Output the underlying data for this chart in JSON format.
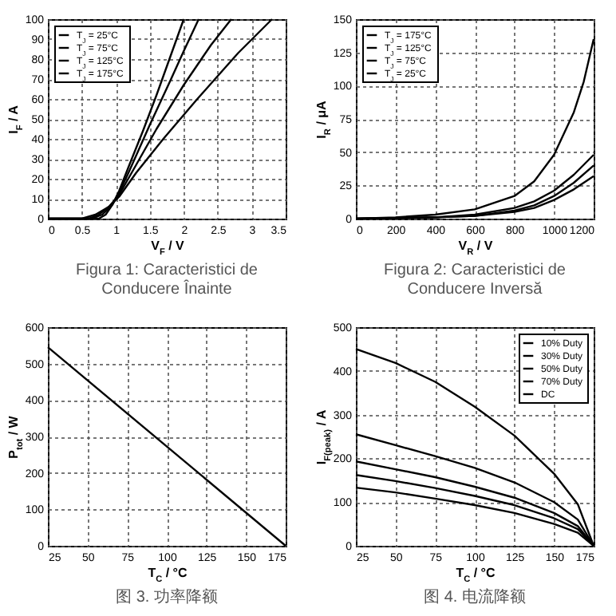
{
  "chart_data": [
    {
      "type": "line",
      "title": "Figura 1: Caracteristici de Conducere Înainte",
      "xlabel": "V$_{F}$ / V",
      "ylabel": "I$_{F}$ / A",
      "xlim": [
        0,
        3.5
      ],
      "xticks": [
        0,
        0.5,
        1,
        1.5,
        2,
        2.5,
        3,
        3.5
      ],
      "ylim": [
        0,
        100
      ],
      "yticks": [
        0,
        10,
        20,
        30,
        40,
        50,
        60,
        70,
        80,
        90,
        100
      ],
      "grid": true,
      "legend": "top left",
      "series": [
        {
          "name": "T$_{J}$ = 25°C",
          "color": "#000000",
          "x": [
            0,
            0.75,
            0.85,
            0.95,
            1.05,
            1.2,
            1.4,
            1.6,
            1.8,
            2.0
          ],
          "values": [
            0,
            0,
            2,
            7,
            14,
            27,
            44,
            62,
            81,
            100
          ]
        },
        {
          "name": "T$_{J}$ = 75°C",
          "color": "#000000",
          "x": [
            0,
            0.65,
            0.8,
            0.95,
            1.05,
            1.2,
            1.5,
            1.8,
            2.0,
            2.22
          ],
          "values": [
            0,
            0,
            2,
            7,
            13,
            24,
            47,
            69,
            84,
            100
          ]
        },
        {
          "name": "T$_{J}$ = 125°C",
          "color": "#000000",
          "x": [
            0,
            0.6,
            0.75,
            0.9,
            1.05,
            1.3,
            1.6,
            2.0,
            2.4,
            2.7
          ],
          "values": [
            0,
            0,
            2,
            6,
            12,
            27,
            45,
            67,
            87,
            100
          ]
        },
        {
          "name": "T$_{J}$ = 175°C",
          "color": "#000000",
          "x": [
            0,
            0.5,
            0.7,
            0.9,
            1.05,
            1.3,
            1.7,
            2.2,
            2.8,
            3.3
          ],
          "values": [
            0,
            0,
            2,
            6,
            11,
            23,
            40,
            60,
            83,
            100
          ]
        }
      ]
    },
    {
      "type": "line",
      "title": "Figura 2: Caracteristici de Conducere Inversă",
      "xlabel": "V$_{R}$ / V",
      "ylabel": "I$_{R}$ / μA",
      "xlim": [
        0,
        1200
      ],
      "xticks": [
        0,
        200,
        400,
        600,
        800,
        1000,
        1200
      ],
      "ylim": [
        0,
        150
      ],
      "yticks": [
        0,
        25,
        50,
        75,
        100,
        125,
        150
      ],
      "grid": true,
      "legend": "top left",
      "series": [
        {
          "name": "T$_{J}$ = 175°C",
          "color": "#000000",
          "x": [
            0,
            200,
            400,
            600,
            800,
            900,
            1000,
            1100,
            1150,
            1200
          ],
          "values": [
            0,
            1,
            3,
            7,
            17,
            28,
            48,
            80,
            103,
            135
          ]
        },
        {
          "name": "T$_{J}$ = 125°C",
          "color": "#000000",
          "x": [
            0,
            400,
            600,
            800,
            900,
            1000,
            1100,
            1200
          ],
          "values": [
            0,
            1,
            3,
            8,
            13,
            21,
            33,
            48
          ]
        },
        {
          "name": "T$_{J}$ = 75°C",
          "color": "#000000",
          "x": [
            0,
            400,
            600,
            800,
            900,
            1000,
            1100,
            1200
          ],
          "values": [
            0,
            1,
            2,
            6,
            10,
            17,
            27,
            40
          ]
        },
        {
          "name": "T$_{J}$ = 25°C",
          "color": "#000000",
          "x": [
            0,
            400,
            600,
            800,
            900,
            1000,
            1100,
            1200
          ],
          "values": [
            0,
            1,
            2,
            5,
            8,
            14,
            22,
            32
          ]
        }
      ]
    },
    {
      "type": "line",
      "title": "图 3. 功率降额",
      "xlabel": "T$_{C}$ / °C",
      "ylabel": "P$_{tot}$ / W",
      "xlim": [
        25,
        175
      ],
      "xticks": [
        25,
        50,
        75,
        100,
        125,
        150,
        175
      ],
      "ylim": [
        0,
        600
      ],
      "yticks": [
        0,
        100,
        200,
        300,
        400,
        500,
        600
      ],
      "grid": true,
      "series": [
        {
          "color": "#000000",
          "x": [
            25,
            175
          ],
          "values": [
            545,
            0
          ]
        }
      ]
    },
    {
      "type": "line",
      "title": "图 4. 电流降额",
      "xlabel": "T$_{C}$ / °C",
      "ylabel": "I$_{F(peak)}$ / A",
      "xlim": [
        25,
        175
      ],
      "xticks": [
        25,
        50,
        75,
        100,
        125,
        150,
        175
      ],
      "ylim": [
        0,
        500
      ],
      "yticks": [
        0,
        100,
        200,
        300,
        400,
        500
      ],
      "grid": true,
      "legend": "top right",
      "series": [
        {
          "name": "10% Duty",
          "color": "#000000",
          "x": [
            25,
            50,
            75,
            100,
            125,
            150,
            165,
            175
          ],
          "values": [
            450,
            418,
            375,
            318,
            252,
            165,
            95,
            0
          ]
        },
        {
          "name": "30% Duty",
          "color": "#000000",
          "x": [
            25,
            50,
            75,
            100,
            125,
            150,
            165,
            175
          ],
          "values": [
            255,
            230,
            205,
            178,
            145,
            100,
            60,
            0
          ]
        },
        {
          "name": "50% Duty",
          "color": "#000000",
          "x": [
            25,
            50,
            75,
            100,
            125,
            150,
            165,
            175
          ],
          "values": [
            193,
            175,
            157,
            135,
            110,
            75,
            45,
            0
          ]
        },
        {
          "name": "70% Duty",
          "color": "#000000",
          "x": [
            25,
            50,
            75,
            100,
            125,
            150,
            165,
            175
          ],
          "values": [
            162,
            148,
            132,
            114,
            93,
            63,
            38,
            0
          ]
        },
        {
          "name": "DC",
          "color": "#000000",
          "x": [
            25,
            50,
            75,
            100,
            125,
            150,
            165,
            175
          ],
          "values": [
            133,
            122,
            108,
            93,
            75,
            50,
            30,
            0
          ]
        }
      ]
    }
  ]
}
